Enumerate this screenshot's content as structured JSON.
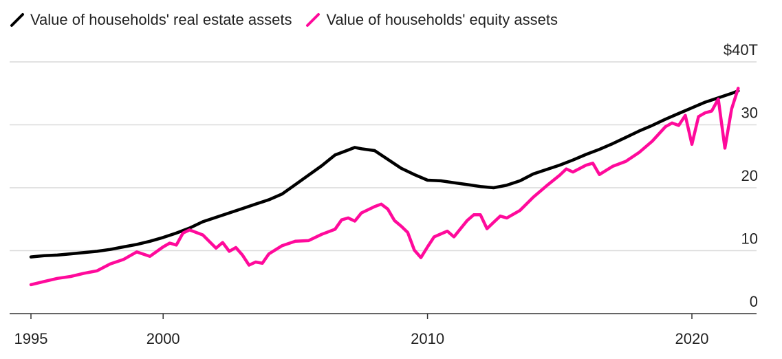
{
  "legend": [
    {
      "label": "Value of households' real estate assets",
      "color": "#000000"
    },
    {
      "label": "Value of households' equity assets",
      "color": "#ff0a9b"
    }
  ],
  "chart_data": {
    "type": "line",
    "xlim": [
      1995,
      2022.5
    ],
    "ylim": [
      0,
      40
    ],
    "y_ticks": [
      0,
      10,
      20,
      30,
      40
    ],
    "y_tick_labels": [
      "0",
      "10",
      "20",
      "30",
      "$40T"
    ],
    "x_ticks": [
      1995,
      2000,
      2010,
      2020
    ],
    "x_tick_labels": [
      "1995",
      "2000",
      "2010",
      "2020"
    ],
    "grid": "horizontal",
    "y_axis_position": "right",
    "legend_position": "top-left",
    "series": [
      {
        "name": "Value of households' real estate assets",
        "color": "#000000",
        "points": [
          [
            1995.0,
            9.0
          ],
          [
            1995.5,
            9.2
          ],
          [
            1996.0,
            9.3
          ],
          [
            1996.5,
            9.5
          ],
          [
            1997.0,
            9.7
          ],
          [
            1997.5,
            9.9
          ],
          [
            1998.0,
            10.2
          ],
          [
            1998.5,
            10.6
          ],
          [
            1999.0,
            11.0
          ],
          [
            1999.5,
            11.5
          ],
          [
            2000.0,
            12.1
          ],
          [
            2000.5,
            12.8
          ],
          [
            2001.0,
            13.6
          ],
          [
            2001.5,
            14.6
          ],
          [
            2002.0,
            15.3
          ],
          [
            2002.5,
            16.0
          ],
          [
            2003.0,
            16.7
          ],
          [
            2003.5,
            17.4
          ],
          [
            2004.0,
            18.1
          ],
          [
            2004.5,
            19.0
          ],
          [
            2005.0,
            20.5
          ],
          [
            2005.5,
            22.0
          ],
          [
            2006.0,
            23.5
          ],
          [
            2006.5,
            25.2
          ],
          [
            2007.0,
            26.0
          ],
          [
            2007.25,
            26.4
          ],
          [
            2007.5,
            26.2
          ],
          [
            2008.0,
            25.9
          ],
          [
            2008.5,
            24.5
          ],
          [
            2009.0,
            23.1
          ],
          [
            2009.5,
            22.1
          ],
          [
            2010.0,
            21.2
          ],
          [
            2010.5,
            21.1
          ],
          [
            2011.0,
            20.8
          ],
          [
            2011.5,
            20.5
          ],
          [
            2012.0,
            20.2
          ],
          [
            2012.5,
            20.0
          ],
          [
            2013.0,
            20.4
          ],
          [
            2013.5,
            21.1
          ],
          [
            2014.0,
            22.2
          ],
          [
            2014.5,
            22.9
          ],
          [
            2015.0,
            23.6
          ],
          [
            2015.5,
            24.4
          ],
          [
            2016.0,
            25.3
          ],
          [
            2016.5,
            26.1
          ],
          [
            2017.0,
            27.0
          ],
          [
            2017.5,
            28.0
          ],
          [
            2018.0,
            29.0
          ],
          [
            2018.5,
            29.9
          ],
          [
            2019.0,
            30.9
          ],
          [
            2019.5,
            31.8
          ],
          [
            2020.0,
            32.7
          ],
          [
            2020.5,
            33.6
          ],
          [
            2021.0,
            34.3
          ],
          [
            2021.5,
            35.0
          ],
          [
            2021.75,
            35.4
          ]
        ]
      },
      {
        "name": "Value of households' equity assets",
        "color": "#ff0a9b",
        "points": [
          [
            1995.0,
            4.6
          ],
          [
            1995.5,
            5.1
          ],
          [
            1996.0,
            5.6
          ],
          [
            1996.5,
            5.9
          ],
          [
            1997.0,
            6.4
          ],
          [
            1997.5,
            6.8
          ],
          [
            1998.0,
            7.9
          ],
          [
            1998.5,
            8.6
          ],
          [
            1999.0,
            9.8
          ],
          [
            1999.5,
            9.1
          ],
          [
            2000.0,
            10.6
          ],
          [
            2000.25,
            11.2
          ],
          [
            2000.5,
            10.9
          ],
          [
            2000.75,
            12.8
          ],
          [
            2001.0,
            13.3
          ],
          [
            2001.5,
            12.5
          ],
          [
            2002.0,
            10.4
          ],
          [
            2002.25,
            11.3
          ],
          [
            2002.5,
            9.9
          ],
          [
            2002.75,
            10.5
          ],
          [
            2003.0,
            9.3
          ],
          [
            2003.25,
            7.7
          ],
          [
            2003.5,
            8.2
          ],
          [
            2003.75,
            8.0
          ],
          [
            2004.0,
            9.5
          ],
          [
            2004.5,
            10.8
          ],
          [
            2005.0,
            11.5
          ],
          [
            2005.5,
            11.6
          ],
          [
            2006.0,
            12.6
          ],
          [
            2006.5,
            13.4
          ],
          [
            2006.75,
            14.9
          ],
          [
            2007.0,
            15.2
          ],
          [
            2007.25,
            14.7
          ],
          [
            2007.5,
            16.0
          ],
          [
            2008.0,
            17.0
          ],
          [
            2008.25,
            17.4
          ],
          [
            2008.5,
            16.6
          ],
          [
            2008.75,
            14.8
          ],
          [
            2009.0,
            13.9
          ],
          [
            2009.25,
            12.9
          ],
          [
            2009.5,
            10.1
          ],
          [
            2009.75,
            8.9
          ],
          [
            2010.0,
            10.6
          ],
          [
            2010.25,
            12.2
          ],
          [
            2010.75,
            13.1
          ],
          [
            2011.0,
            12.2
          ],
          [
            2011.5,
            14.8
          ],
          [
            2011.75,
            15.7
          ],
          [
            2012.0,
            15.7
          ],
          [
            2012.25,
            13.5
          ],
          [
            2012.5,
            14.5
          ],
          [
            2012.75,
            15.5
          ],
          [
            2013.0,
            15.2
          ],
          [
            2013.5,
            16.4
          ],
          [
            2014.0,
            18.5
          ],
          [
            2014.5,
            20.3
          ],
          [
            2015.0,
            22.0
          ],
          [
            2015.25,
            23.0
          ],
          [
            2015.5,
            22.5
          ],
          [
            2016.0,
            23.6
          ],
          [
            2016.25,
            23.9
          ],
          [
            2016.5,
            22.1
          ],
          [
            2017.0,
            23.4
          ],
          [
            2017.5,
            24.2
          ],
          [
            2018.0,
            25.6
          ],
          [
            2018.5,
            27.4
          ],
          [
            2019.0,
            29.7
          ],
          [
            2019.25,
            30.3
          ],
          [
            2019.5,
            29.9
          ],
          [
            2019.75,
            31.5
          ],
          [
            2020.0,
            26.9
          ],
          [
            2020.25,
            31.3
          ],
          [
            2020.5,
            31.9
          ],
          [
            2020.75,
            32.2
          ],
          [
            2021.0,
            34.1
          ],
          [
            2021.25,
            26.3
          ],
          [
            2021.5,
            32.5
          ],
          [
            2021.75,
            35.8
          ]
        ]
      }
    ]
  }
}
